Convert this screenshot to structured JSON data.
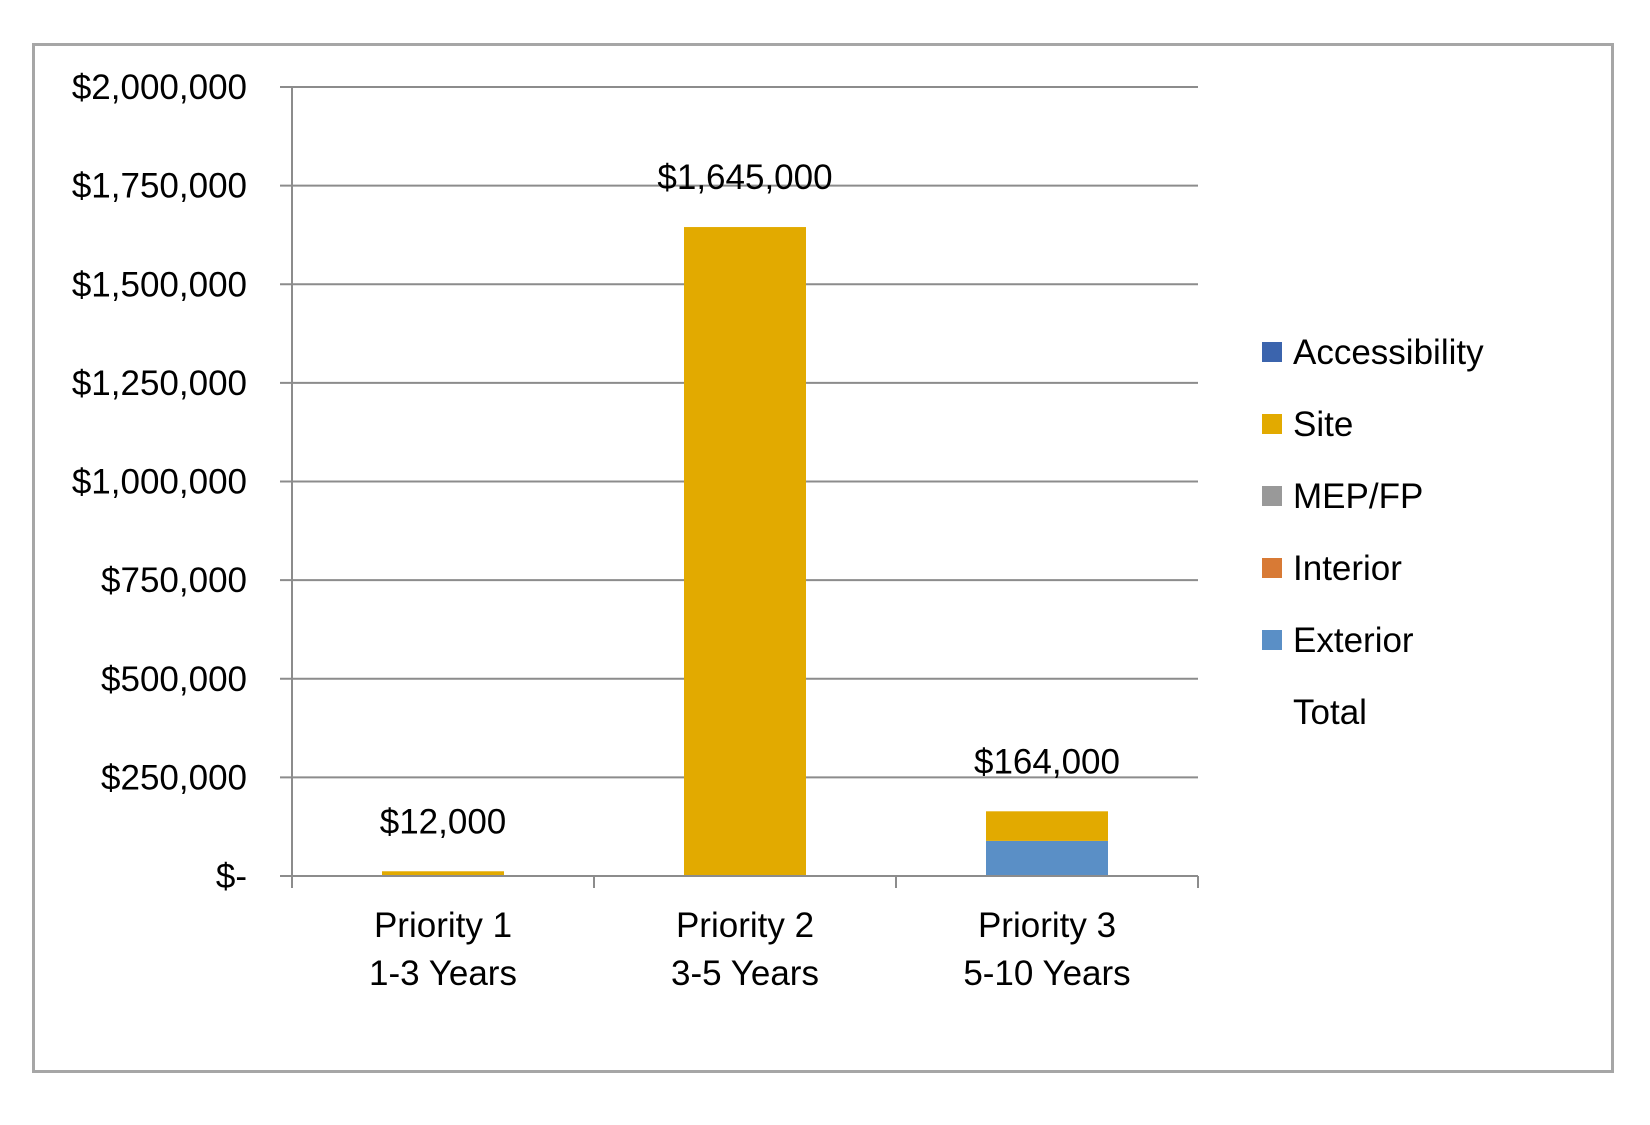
{
  "chart_data": {
    "type": "bar",
    "stacked": true,
    "categories": [
      [
        "Priority 1",
        "1-3 Years"
      ],
      [
        "Priority 2",
        "3-5 Years"
      ],
      [
        "Priority 3",
        "5-10 Years"
      ]
    ],
    "series": [
      {
        "name": "Accessibility",
        "color": "#3b64ad",
        "values": [
          0,
          0,
          0
        ]
      },
      {
        "name": "Site",
        "color": "#e2aa00",
        "values": [
          12000,
          1645000,
          75000
        ]
      },
      {
        "name": "MEP/FP",
        "color": "#999999",
        "values": [
          0,
          0,
          0
        ]
      },
      {
        "name": "Interior",
        "color": "#d87a35",
        "values": [
          0,
          0,
          0
        ]
      },
      {
        "name": "Exterior",
        "color": "#5a8fc6",
        "values": [
          0,
          0,
          89000
        ]
      },
      {
        "name": "Total",
        "color": "none",
        "values": [
          12000,
          1645000,
          164000
        ]
      }
    ],
    "stack_order": [
      "Exterior",
      "Interior",
      "MEP/FP",
      "Site",
      "Accessibility"
    ],
    "total_labels": [
      "$12,000",
      "$1,645,000",
      "$164,000"
    ],
    "ylim": [
      0,
      2000000
    ],
    "ytick_values": [
      0,
      250000,
      500000,
      750000,
      1000000,
      1250000,
      1500000,
      1750000,
      2000000
    ],
    "ytick_labels": [
      "$-",
      "$250,000",
      "$500,000",
      "$750,000",
      "$1,000,000",
      "$1,250,000",
      "$1,500,000",
      "$1,750,000",
      "$2,000,000"
    ],
    "title": "",
    "xlabel": "",
    "ylabel": "",
    "grid": true,
    "legend_position": "right"
  }
}
